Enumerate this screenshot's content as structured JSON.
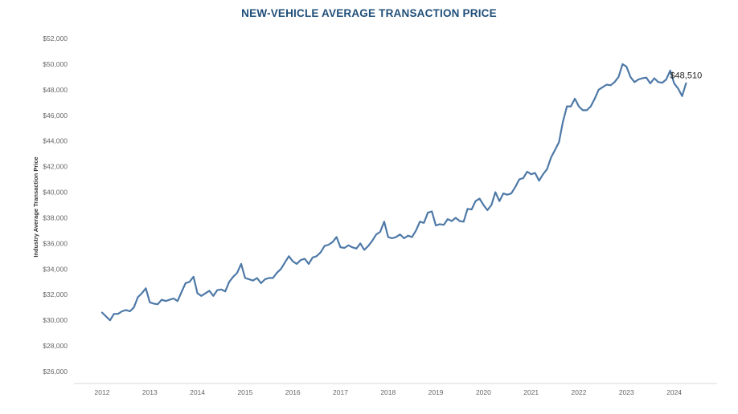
{
  "chart_data": {
    "type": "line",
    "title": "NEW-VEHICLE AVERAGE TRANSACTION PRICE",
    "xlabel": "",
    "ylabel": "Industry Average Transaction Price",
    "ylim": [
      25000,
      53000
    ],
    "y_ticks": [
      26000,
      28000,
      30000,
      32000,
      34000,
      36000,
      38000,
      40000,
      42000,
      44000,
      46000,
      48000,
      50000,
      52000
    ],
    "y_tick_labels": [
      "$26,000",
      "$28,000",
      "$30,000",
      "$32,000",
      "$34,000",
      "$36,000",
      "$38,000",
      "$40,000",
      "$42,000",
      "$44,000",
      "$46,000",
      "$48,000",
      "$50,000",
      "$52,000"
    ],
    "x_ticks": [
      "2012",
      "2013",
      "2014",
      "2015",
      "2016",
      "2017",
      "2018",
      "2019",
      "2020",
      "2021",
      "2022",
      "2023",
      "2024"
    ],
    "grid": false,
    "line_color": "#4e79a7",
    "annotation": {
      "text": "$48,510",
      "x": "2024-04",
      "y": 48510
    },
    "series": [
      {
        "x": [
          "2012-01",
          "2012-02",
          "2012-03",
          "2012-04",
          "2012-05",
          "2012-06",
          "2012-07",
          "2012-08",
          "2012-09",
          "2012-10",
          "2012-11",
          "2012-12",
          "2013-01",
          "2013-02",
          "2013-03",
          "2013-04",
          "2013-05",
          "2013-06",
          "2013-07",
          "2013-08",
          "2013-09",
          "2013-10",
          "2013-11",
          "2013-12",
          "2014-01",
          "2014-02",
          "2014-03",
          "2014-04",
          "2014-05",
          "2014-06",
          "2014-07",
          "2014-08",
          "2014-09",
          "2014-10",
          "2014-11",
          "2014-12",
          "2015-01",
          "2015-02",
          "2015-03",
          "2015-04",
          "2015-05",
          "2015-06",
          "2015-07",
          "2015-08",
          "2015-09",
          "2015-10",
          "2015-11",
          "2015-12",
          "2016-01",
          "2016-02",
          "2016-03",
          "2016-04",
          "2016-05",
          "2016-06",
          "2016-07",
          "2016-08",
          "2016-09",
          "2016-10",
          "2016-11",
          "2016-12",
          "2017-01",
          "2017-02",
          "2017-03",
          "2017-04",
          "2017-05",
          "2017-06",
          "2017-07",
          "2017-08",
          "2017-09",
          "2017-10",
          "2017-11",
          "2017-12",
          "2018-01",
          "2018-02",
          "2018-03",
          "2018-04",
          "2018-05",
          "2018-06",
          "2018-07",
          "2018-08",
          "2018-09",
          "2018-10",
          "2018-11",
          "2018-12",
          "2019-01",
          "2019-02",
          "2019-03",
          "2019-04",
          "2019-05",
          "2019-06",
          "2019-07",
          "2019-08",
          "2019-09",
          "2019-10",
          "2019-11",
          "2019-12",
          "2020-01",
          "2020-02",
          "2020-03",
          "2020-04",
          "2020-05",
          "2020-06",
          "2020-07",
          "2020-08",
          "2020-09",
          "2020-10",
          "2020-11",
          "2020-12",
          "2021-01",
          "2021-02",
          "2021-03",
          "2021-04",
          "2021-05",
          "2021-06",
          "2021-07",
          "2021-08",
          "2021-09",
          "2021-10",
          "2021-11",
          "2021-12",
          "2022-01",
          "2022-02",
          "2022-03",
          "2022-04",
          "2022-05",
          "2022-06",
          "2022-07",
          "2022-08",
          "2022-09",
          "2022-10",
          "2022-11",
          "2022-12",
          "2023-01",
          "2023-02",
          "2023-03",
          "2023-04",
          "2023-05",
          "2023-06",
          "2023-07",
          "2023-08",
          "2023-09",
          "2023-10",
          "2023-11",
          "2023-12",
          "2024-01",
          "2024-02",
          "2024-03",
          "2024-04"
        ],
        "values": [
          30600,
          30300,
          30000,
          30500,
          30500,
          30700,
          30800,
          30700,
          31000,
          31800,
          32100,
          32500,
          31400,
          31300,
          31250,
          31600,
          31500,
          31600,
          31700,
          31500,
          32200,
          32900,
          33000,
          33400,
          32100,
          31900,
          32100,
          32300,
          31900,
          32350,
          32400,
          32250,
          33000,
          33400,
          33700,
          34400,
          33300,
          33200,
          33100,
          33300,
          32900,
          33200,
          33300,
          33300,
          33700,
          34000,
          34500,
          35000,
          34600,
          34400,
          34700,
          34800,
          34400,
          34900,
          35000,
          35300,
          35800,
          35900,
          36100,
          36500,
          35700,
          35650,
          35850,
          35700,
          35600,
          36000,
          35500,
          35800,
          36200,
          36700,
          36900,
          37700,
          36500,
          36400,
          36500,
          36700,
          36400,
          36600,
          36500,
          37000,
          37700,
          37600,
          38400,
          38500,
          37400,
          37500,
          37450,
          37900,
          37750,
          38000,
          37750,
          37700,
          38700,
          38650,
          39300,
          39500,
          39000,
          38600,
          39000,
          40000,
          39300,
          39900,
          39800,
          39900,
          40400,
          41000,
          41100,
          41600,
          41400,
          41500,
          40900,
          41400,
          41800,
          42700,
          43300,
          43900,
          45500,
          46700,
          46700,
          47300,
          46700,
          46400,
          46400,
          46700,
          47300,
          48000,
          48200,
          48400,
          48350,
          48600,
          49000,
          50000,
          49800,
          49000,
          48600,
          48800,
          48900,
          48950,
          48500,
          48900,
          48600,
          48550,
          48800,
          49500,
          48500,
          48100,
          47500,
          48510
        ]
      }
    ]
  }
}
